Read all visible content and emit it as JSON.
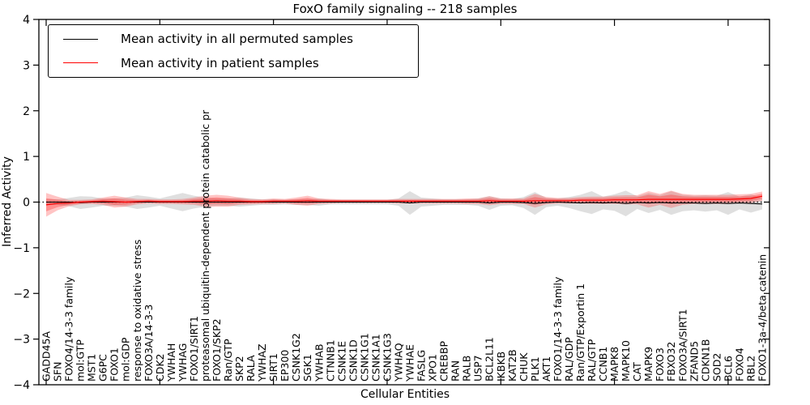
{
  "title": "FoxO family signaling -- 218 samples",
  "axes": {
    "xlabel": "Cellular Entities",
    "ylabel": "Inferred Activity",
    "y_ticks": [
      -4,
      -3,
      -2,
      -1,
      0,
      1,
      2,
      3,
      4
    ],
    "ylim": [
      -4,
      4
    ]
  },
  "legend": {
    "entries": [
      {
        "label": "Mean activity in all permuted samples",
        "color": "#000000"
      },
      {
        "label": "Mean activity in patient samples",
        "color": "#ff0000"
      }
    ]
  },
  "colors": {
    "permuted_line": "#000000",
    "patient_line": "#ff0000",
    "permuted_band": "#b8b8b8",
    "patient_band": "#ff2a2a",
    "zero_line": "#000000"
  },
  "chart_data": {
    "type": "line",
    "title": "FoxO family signaling -- 218 samples",
    "xlabel": "Cellular Entities",
    "ylabel": "Inferred Activity",
    "ylim": [
      -4,
      4
    ],
    "grid": false,
    "legend_position": "upper left",
    "categories": [
      "GADD45A",
      "SFN",
      "FOXO4/14-3-3 family",
      "mol:GTP",
      "MST1",
      "G6PC",
      "FOXO1",
      "mol:GDP",
      "response to oxidative stress",
      "FOXO3A/14-3-3",
      "CDK2",
      "YWHAH",
      "YWHAG",
      "FOXO1/SIRT1",
      "proteasomal ubiquitin-dependent protein catabolic pr",
      "FOXO1/SKP2",
      "Ran/GTP",
      "SKP2",
      "RALA",
      "YWHAZ",
      "SIRT1",
      "EP300",
      "CSNK1G2",
      "SGK1",
      "YWHAB",
      "CTNNB1",
      "CSNK1E",
      "CSNK1D",
      "CSNK1G1",
      "CSNK1A1",
      "CSNK1G3",
      "YWHAQ",
      "YWHAE",
      "FASLG",
      "XPO1",
      "CREBBP",
      "RAN",
      "RALB",
      "USP7",
      "BCL2L11",
      "IKBKB",
      "KAT2B",
      "CHUK",
      "PLK1",
      "AKT1",
      "FOXO1/14-3-3 family",
      "RAL/GDP",
      "Ran/GTP/Exportin 1",
      "RAL/GTP",
      "CCNB1",
      "MAPK8",
      "MAPK10",
      "CAT",
      "MAPK9",
      "FOXO3",
      "FBXO32",
      "FOXO3A/SIRT1",
      "ZFAND5",
      "CDKN1B",
      "SOD2",
      "BCL6",
      "FOXO4",
      "RBL2",
      "FOXO1-3a-4/beta catenin"
    ],
    "series": [
      {
        "name": "Mean activity in all permuted samples",
        "values": [
          0,
          0,
          0,
          -0.01,
          0,
          0,
          0,
          0,
          0,
          0,
          0,
          0,
          0,
          0,
          0,
          0,
          0,
          0,
          0,
          0,
          0,
          0,
          0,
          0,
          0,
          0,
          0,
          0,
          0,
          0,
          0,
          0,
          -0.02,
          0,
          0,
          0,
          0,
          0,
          0,
          -0.02,
          0,
          0,
          -0.01,
          -0.03,
          -0.01,
          0,
          -0.01,
          -0.02,
          -0.01,
          -0.02,
          -0.01,
          -0.03,
          -0.01,
          -0.02,
          -0.01,
          -0.02,
          -0.02,
          -0.02,
          -0.03,
          -0.02,
          -0.03,
          -0.02,
          -0.03,
          -0.04
        ],
        "band_halfwidth": [
          0.06,
          0.06,
          0.09,
          0.14,
          0.12,
          0.08,
          0.08,
          0.1,
          0.15,
          0.12,
          0.08,
          0.14,
          0.2,
          0.14,
          0.1,
          0.08,
          0.08,
          0.1,
          0.08,
          0.06,
          0.06,
          0.05,
          0.06,
          0.06,
          0.08,
          0.05,
          0.05,
          0.05,
          0.05,
          0.05,
          0.05,
          0.08,
          0.26,
          0.1,
          0.08,
          0.06,
          0.06,
          0.06,
          0.08,
          0.15,
          0.08,
          0.07,
          0.12,
          0.25,
          0.1,
          0.08,
          0.12,
          0.18,
          0.25,
          0.14,
          0.18,
          0.28,
          0.14,
          0.22,
          0.16,
          0.26,
          0.18,
          0.16,
          0.18,
          0.16,
          0.25,
          0.14,
          0.2,
          0.12
        ]
      },
      {
        "name": "Mean activity in patient samples",
        "values": [
          -0.06,
          -0.03,
          -0.02,
          0,
          0.01,
          0.02,
          0.01,
          0,
          0.01,
          0.02,
          0.01,
          0.01,
          0.01,
          0.02,
          0.02,
          0.03,
          0.02,
          0.02,
          0.01,
          0.01,
          0.02,
          0.02,
          0.02,
          0.03,
          0.02,
          0.02,
          0.02,
          0.02,
          0.02,
          0.02,
          0.02,
          0.02,
          0.02,
          0.02,
          0.02,
          0.02,
          0.02,
          0.02,
          0.02,
          0.03,
          0.02,
          0.02,
          0.02,
          0.03,
          0.03,
          0.03,
          0.03,
          0.04,
          0.04,
          0.04,
          0.05,
          0.05,
          0.05,
          0.06,
          0.06,
          0.06,
          0.06,
          0.06,
          0.06,
          0.06,
          0.06,
          0.07,
          0.08,
          0.13
        ],
        "band_halfwidth": [
          0.26,
          0.15,
          0.07,
          0.05,
          0.05,
          0.08,
          0.13,
          0.1,
          0.06,
          0.05,
          0.05,
          0.05,
          0.06,
          0.08,
          0.12,
          0.13,
          0.12,
          0.08,
          0.06,
          0.05,
          0.06,
          0.05,
          0.08,
          0.11,
          0.06,
          0.05,
          0.04,
          0.04,
          0.04,
          0.04,
          0.04,
          0.05,
          0.05,
          0.05,
          0.05,
          0.05,
          0.05,
          0.06,
          0.06,
          0.1,
          0.06,
          0.06,
          0.06,
          0.15,
          0.08,
          0.06,
          0.06,
          0.07,
          0.08,
          0.08,
          0.09,
          0.1,
          0.1,
          0.18,
          0.12,
          0.19,
          0.12,
          0.1,
          0.1,
          0.1,
          0.1,
          0.1,
          0.1,
          0.1
        ]
      }
    ],
    "zero_reference_line": 0
  }
}
